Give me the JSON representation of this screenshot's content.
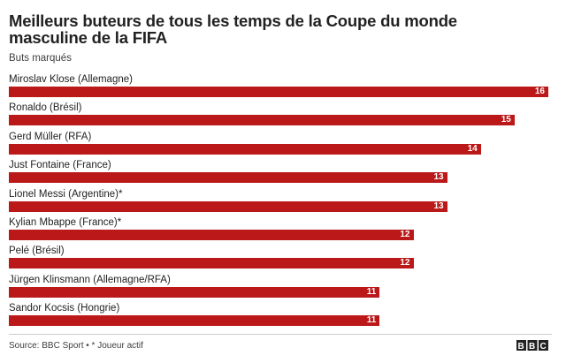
{
  "chart_data": {
    "type": "bar",
    "orientation": "horizontal",
    "title": "Meilleurs buteurs de tous les temps de la Coupe du monde masculine de la FIFA",
    "subtitle": "Buts marqués",
    "categories": [
      "Miroslav Klose (Allemagne)",
      "Ronaldo (Brésil)",
      "Gerd Müller (RFA)",
      "Just Fontaine (France)",
      "Lionel Messi (Argentine)*",
      "Kylian Mbappe (France)*",
      "Pelé (Brésil)",
      "Jürgen Klinsmann (Allemagne/RFA)",
      "Sandor Kocsis (Hongrie)"
    ],
    "values": [
      16,
      15,
      14,
      13,
      13,
      12,
      12,
      11,
      11
    ],
    "color": "#bb1919",
    "xlim": [
      0,
      16
    ],
    "source": "Source: BBC Sport • * Joueur actif",
    "logo": "BBC"
  }
}
